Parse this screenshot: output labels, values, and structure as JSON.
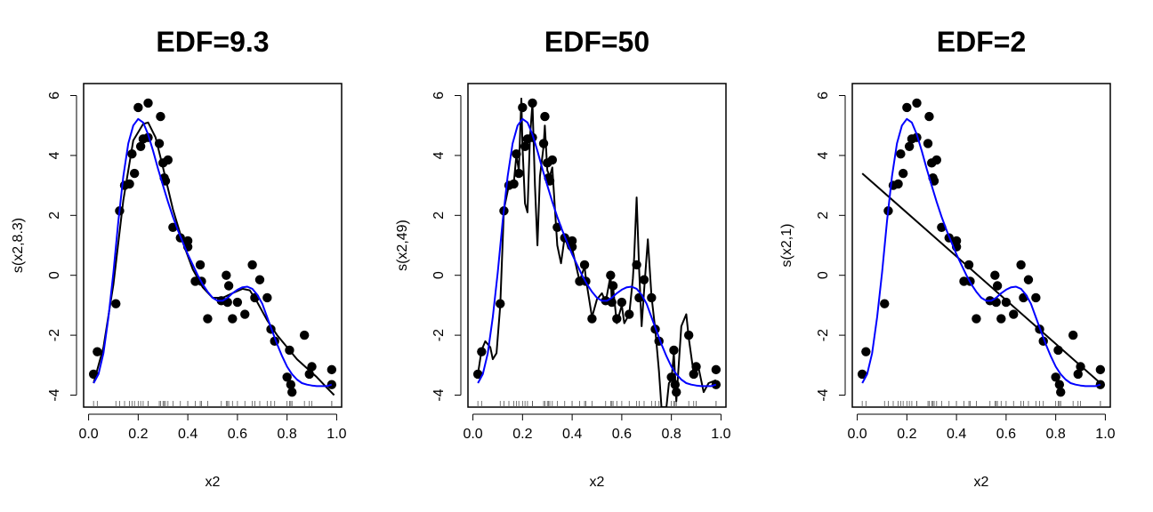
{
  "chart_data": [
    {
      "type": "line",
      "title": "EDF=9.3",
      "xlabel": "x2",
      "ylabel": "s(x2,8.3)",
      "xlim": [
        -0.02,
        1.02
      ],
      "ylim": [
        -4.4,
        6.4
      ],
      "xticks": [
        0.0,
        0.2,
        0.4,
        0.6,
        0.8,
        1.0
      ],
      "xtick_labels": [
        "0.0",
        "0.2",
        "0.4",
        "0.6",
        "0.8",
        "1.0"
      ],
      "yticks": [
        -4,
        -2,
        0,
        2,
        4,
        6
      ],
      "ytick_labels": [
        "-4",
        "-2",
        "0",
        "2",
        "4",
        "6"
      ],
      "grid": false,
      "rug": true,
      "series": [
        {
          "role": "fit",
          "color": "#000000",
          "x": [
            0.02,
            0.06,
            0.1,
            0.14,
            0.18,
            0.22,
            0.24,
            0.27,
            0.3,
            0.34,
            0.38,
            0.42,
            0.46,
            0.5,
            0.54,
            0.58,
            0.62,
            0.65,
            0.68,
            0.72,
            0.76,
            0.8,
            0.84,
            0.88,
            0.92,
            0.96,
            0.99
          ],
          "y": [
            -3.6,
            -2.4,
            -0.3,
            2.5,
            4.5,
            5.05,
            5.1,
            4.6,
            3.6,
            2.2,
            1.1,
            0.2,
            -0.4,
            -0.75,
            -0.75,
            -0.6,
            -0.45,
            -0.5,
            -0.9,
            -1.5,
            -2.0,
            -2.4,
            -2.8,
            -3.1,
            -3.4,
            -3.75,
            -4.0
          ]
        },
        {
          "role": "true",
          "color": "#0000ff",
          "x": [
            0.02,
            0.04,
            0.06,
            0.08,
            0.1,
            0.12,
            0.14,
            0.16,
            0.18,
            0.2,
            0.22,
            0.24,
            0.26,
            0.28,
            0.3,
            0.32,
            0.34,
            0.36,
            0.38,
            0.4,
            0.42,
            0.44,
            0.46,
            0.48,
            0.5,
            0.52,
            0.54,
            0.56,
            0.58,
            0.6,
            0.62,
            0.64,
            0.66,
            0.68,
            0.7,
            0.72,
            0.74,
            0.76,
            0.78,
            0.8,
            0.82,
            0.84,
            0.86,
            0.88,
            0.9,
            0.92,
            0.94,
            0.96,
            0.98
          ],
          "y": [
            -3.6,
            -3.3,
            -2.6,
            -1.4,
            0.1,
            1.8,
            3.3,
            4.4,
            5.0,
            5.22,
            5.1,
            4.7,
            4.15,
            3.55,
            3.0,
            2.45,
            1.95,
            1.5,
            1.1,
            0.7,
            0.35,
            0.0,
            -0.3,
            -0.55,
            -0.75,
            -0.85,
            -0.85,
            -0.75,
            -0.6,
            -0.48,
            -0.4,
            -0.38,
            -0.45,
            -0.65,
            -0.95,
            -1.4,
            -1.85,
            -2.3,
            -2.7,
            -3.05,
            -3.3,
            -3.48,
            -3.6,
            -3.65,
            -3.68,
            -3.7,
            -3.7,
            -3.7,
            -3.65
          ]
        },
        {
          "role": "data",
          "color": "#000000",
          "x": [
            0.02,
            0.035,
            0.11,
            0.125,
            0.145,
            0.165,
            0.175,
            0.185,
            0.2,
            0.21,
            0.22,
            0.24,
            0.24,
            0.285,
            0.29,
            0.3,
            0.305,
            0.31,
            0.32,
            0.34,
            0.37,
            0.4,
            0.4,
            0.43,
            0.45,
            0.455,
            0.48,
            0.535,
            0.555,
            0.56,
            0.565,
            0.58,
            0.6,
            0.63,
            0.66,
            0.67,
            0.69,
            0.72,
            0.735,
            0.75,
            0.8,
            0.81,
            0.815,
            0.82,
            0.87,
            0.89,
            0.9,
            0.98,
            0.98
          ],
          "y": [
            -3.3,
            -2.55,
            -0.95,
            2.15,
            3.0,
            3.05,
            4.05,
            3.4,
            5.6,
            4.3,
            4.55,
            4.6,
            5.75,
            4.4,
            5.3,
            3.75,
            3.25,
            3.15,
            3.85,
            1.6,
            1.25,
            0.95,
            1.15,
            -0.2,
            0.35,
            -0.2,
            -1.45,
            -0.85,
            0.0,
            -0.9,
            -0.35,
            -1.45,
            -0.9,
            -1.3,
            0.35,
            -0.75,
            -0.15,
            -0.75,
            -1.8,
            -2.2,
            -3.4,
            -2.5,
            -3.65,
            -3.9,
            -2.0,
            -3.3,
            -3.05,
            -3.65,
            -3.15
          ]
        }
      ]
    },
    {
      "type": "line",
      "title": "EDF=50",
      "xlabel": "x2",
      "ylabel": "s(x2,49)",
      "xlim": [
        -0.02,
        1.02
      ],
      "ylim": [
        -4.4,
        6.4
      ],
      "xticks": [
        0.0,
        0.2,
        0.4,
        0.6,
        0.8,
        1.0
      ],
      "xtick_labels": [
        "0.0",
        "0.2",
        "0.4",
        "0.6",
        "0.8",
        "1.0"
      ],
      "yticks": [
        -4,
        -2,
        0,
        2,
        4,
        6
      ],
      "ytick_labels": [
        "-4",
        "-2",
        "0",
        "2",
        "4",
        "6"
      ],
      "grid": false,
      "rug": true,
      "series": [
        {
          "role": "fit",
          "color": "#000000",
          "x": [
            0.02,
            0.035,
            0.05,
            0.07,
            0.08,
            0.095,
            0.11,
            0.125,
            0.145,
            0.165,
            0.175,
            0.185,
            0.195,
            0.2,
            0.21,
            0.22,
            0.23,
            0.24,
            0.25,
            0.26,
            0.27,
            0.285,
            0.29,
            0.3,
            0.31,
            0.32,
            0.34,
            0.355,
            0.37,
            0.385,
            0.4,
            0.43,
            0.45,
            0.455,
            0.48,
            0.5,
            0.52,
            0.535,
            0.555,
            0.56,
            0.565,
            0.58,
            0.6,
            0.61,
            0.63,
            0.645,
            0.65,
            0.66,
            0.67,
            0.68,
            0.69,
            0.705,
            0.72,
            0.735,
            0.75,
            0.76,
            0.77,
            0.78,
            0.79,
            0.8,
            0.81,
            0.815,
            0.82,
            0.84,
            0.86,
            0.87,
            0.89,
            0.91,
            0.93,
            0.95,
            0.98
          ],
          "y": [
            -3.3,
            -2.5,
            -2.2,
            -2.4,
            -2.8,
            -2.6,
            -1.0,
            2.2,
            3.0,
            3.1,
            4.0,
            3.5,
            5.9,
            4.3,
            2.4,
            2.1,
            4.6,
            5.75,
            3.0,
            1.0,
            3.3,
            4.3,
            5.0,
            3.5,
            3.3,
            3.6,
            1.0,
            0.4,
            1.3,
            0.9,
            0.9,
            -0.2,
            0.3,
            -0.1,
            -1.4,
            -0.8,
            -0.6,
            -0.9,
            0.0,
            -0.9,
            -0.4,
            -1.6,
            -1.0,
            -1.6,
            -1.3,
            -0.1,
            0.6,
            2.6,
            0.2,
            -1.7,
            -0.5,
            1.2,
            -0.7,
            -1.8,
            -3.2,
            -4.4,
            -4.4,
            -4.4,
            -3.6,
            -3.5,
            -2.6,
            -3.4,
            -4.2,
            -1.7,
            -1.3,
            -2.1,
            -3.3,
            -3.1,
            -3.9,
            -3.6,
            -3.5
          ]
        },
        {
          "role": "true",
          "color": "#0000ff",
          "x": [
            0.02,
            0.04,
            0.06,
            0.08,
            0.1,
            0.12,
            0.14,
            0.16,
            0.18,
            0.2,
            0.22,
            0.24,
            0.26,
            0.28,
            0.3,
            0.32,
            0.34,
            0.36,
            0.38,
            0.4,
            0.42,
            0.44,
            0.46,
            0.48,
            0.5,
            0.52,
            0.54,
            0.56,
            0.58,
            0.6,
            0.62,
            0.64,
            0.66,
            0.68,
            0.7,
            0.72,
            0.74,
            0.76,
            0.78,
            0.8,
            0.82,
            0.84,
            0.86,
            0.88,
            0.9,
            0.92,
            0.94,
            0.96,
            0.98
          ],
          "y": [
            -3.6,
            -3.3,
            -2.6,
            -1.4,
            0.1,
            1.8,
            3.3,
            4.4,
            5.0,
            5.22,
            5.1,
            4.7,
            4.15,
            3.55,
            3.0,
            2.45,
            1.95,
            1.5,
            1.1,
            0.7,
            0.35,
            0.0,
            -0.3,
            -0.55,
            -0.75,
            -0.85,
            -0.85,
            -0.75,
            -0.6,
            -0.48,
            -0.4,
            -0.38,
            -0.45,
            -0.65,
            -0.95,
            -1.4,
            -1.85,
            -2.3,
            -2.7,
            -3.05,
            -3.3,
            -3.48,
            -3.6,
            -3.65,
            -3.68,
            -3.7,
            -3.7,
            -3.7,
            -3.65
          ]
        },
        {
          "role": "data",
          "color": "#000000",
          "x": [
            0.02,
            0.035,
            0.11,
            0.125,
            0.145,
            0.165,
            0.175,
            0.185,
            0.2,
            0.21,
            0.22,
            0.24,
            0.24,
            0.285,
            0.29,
            0.3,
            0.305,
            0.31,
            0.32,
            0.34,
            0.37,
            0.4,
            0.4,
            0.43,
            0.45,
            0.455,
            0.48,
            0.535,
            0.555,
            0.56,
            0.565,
            0.58,
            0.6,
            0.63,
            0.66,
            0.67,
            0.69,
            0.72,
            0.735,
            0.75,
            0.8,
            0.81,
            0.815,
            0.82,
            0.87,
            0.89,
            0.9,
            0.98,
            0.98
          ],
          "y": [
            -3.3,
            -2.55,
            -0.95,
            2.15,
            3.0,
            3.05,
            4.05,
            3.4,
            5.6,
            4.3,
            4.55,
            4.6,
            5.75,
            4.4,
            5.3,
            3.75,
            3.25,
            3.15,
            3.85,
            1.6,
            1.25,
            0.95,
            1.15,
            -0.2,
            0.35,
            -0.2,
            -1.45,
            -0.85,
            0.0,
            -0.9,
            -0.35,
            -1.45,
            -0.9,
            -1.3,
            0.35,
            -0.75,
            -0.15,
            -0.75,
            -1.8,
            -2.2,
            -3.4,
            -2.5,
            -3.65,
            -3.9,
            -2.0,
            -3.3,
            -3.05,
            -3.65,
            -3.15
          ]
        }
      ]
    },
    {
      "type": "line",
      "title": "EDF=2",
      "xlabel": "x2",
      "ylabel": "s(x2,1)",
      "xlim": [
        -0.02,
        1.02
      ],
      "ylim": [
        -4.4,
        6.4
      ],
      "xticks": [
        0.0,
        0.2,
        0.4,
        0.6,
        0.8,
        1.0
      ],
      "xtick_labels": [
        "0.0",
        "0.2",
        "0.4",
        "0.6",
        "0.8",
        "1.0"
      ],
      "yticks": [
        -4,
        -2,
        0,
        2,
        4,
        6
      ],
      "ytick_labels": [
        "-4",
        "-2",
        "0",
        "2",
        "4",
        "6"
      ],
      "grid": false,
      "rug": true,
      "series": [
        {
          "role": "fit",
          "color": "#000000",
          "x": [
            0.02,
            0.98
          ],
          "y": [
            3.4,
            -3.6
          ]
        },
        {
          "role": "true",
          "color": "#0000ff",
          "x": [
            0.02,
            0.04,
            0.06,
            0.08,
            0.1,
            0.12,
            0.14,
            0.16,
            0.18,
            0.2,
            0.22,
            0.24,
            0.26,
            0.28,
            0.3,
            0.32,
            0.34,
            0.36,
            0.38,
            0.4,
            0.42,
            0.44,
            0.46,
            0.48,
            0.5,
            0.52,
            0.54,
            0.56,
            0.58,
            0.6,
            0.62,
            0.64,
            0.66,
            0.68,
            0.7,
            0.72,
            0.74,
            0.76,
            0.78,
            0.8,
            0.82,
            0.84,
            0.86,
            0.88,
            0.9,
            0.92,
            0.94,
            0.96,
            0.98
          ],
          "y": [
            -3.6,
            -3.3,
            -2.6,
            -1.4,
            0.1,
            1.8,
            3.3,
            4.4,
            5.0,
            5.22,
            5.1,
            4.7,
            4.15,
            3.55,
            3.0,
            2.45,
            1.95,
            1.5,
            1.1,
            0.7,
            0.35,
            0.0,
            -0.3,
            -0.55,
            -0.75,
            -0.85,
            -0.85,
            -0.75,
            -0.6,
            -0.48,
            -0.4,
            -0.38,
            -0.45,
            -0.65,
            -0.95,
            -1.4,
            -1.85,
            -2.3,
            -2.7,
            -3.05,
            -3.3,
            -3.48,
            -3.6,
            -3.65,
            -3.68,
            -3.7,
            -3.7,
            -3.7,
            -3.65
          ]
        },
        {
          "role": "data",
          "color": "#000000",
          "x": [
            0.02,
            0.035,
            0.11,
            0.125,
            0.145,
            0.165,
            0.175,
            0.185,
            0.2,
            0.21,
            0.22,
            0.24,
            0.24,
            0.285,
            0.29,
            0.3,
            0.305,
            0.31,
            0.32,
            0.34,
            0.37,
            0.4,
            0.4,
            0.43,
            0.45,
            0.455,
            0.48,
            0.535,
            0.555,
            0.56,
            0.565,
            0.58,
            0.6,
            0.63,
            0.66,
            0.67,
            0.69,
            0.72,
            0.735,
            0.75,
            0.8,
            0.81,
            0.815,
            0.82,
            0.87,
            0.89,
            0.9,
            0.98,
            0.98
          ],
          "y": [
            -3.3,
            -2.55,
            -0.95,
            2.15,
            3.0,
            3.05,
            4.05,
            3.4,
            5.6,
            4.3,
            4.55,
            4.6,
            5.75,
            4.4,
            5.3,
            3.75,
            3.25,
            3.15,
            3.85,
            1.6,
            1.25,
            0.95,
            1.15,
            -0.2,
            0.35,
            -0.2,
            -1.45,
            -0.85,
            0.0,
            -0.9,
            -0.35,
            -1.45,
            -0.9,
            -1.3,
            0.35,
            -0.75,
            -0.15,
            -0.75,
            -1.8,
            -2.2,
            -3.4,
            -2.5,
            -3.65,
            -3.9,
            -2.0,
            -3.3,
            -3.05,
            -3.65,
            -3.15
          ]
        }
      ]
    }
  ]
}
